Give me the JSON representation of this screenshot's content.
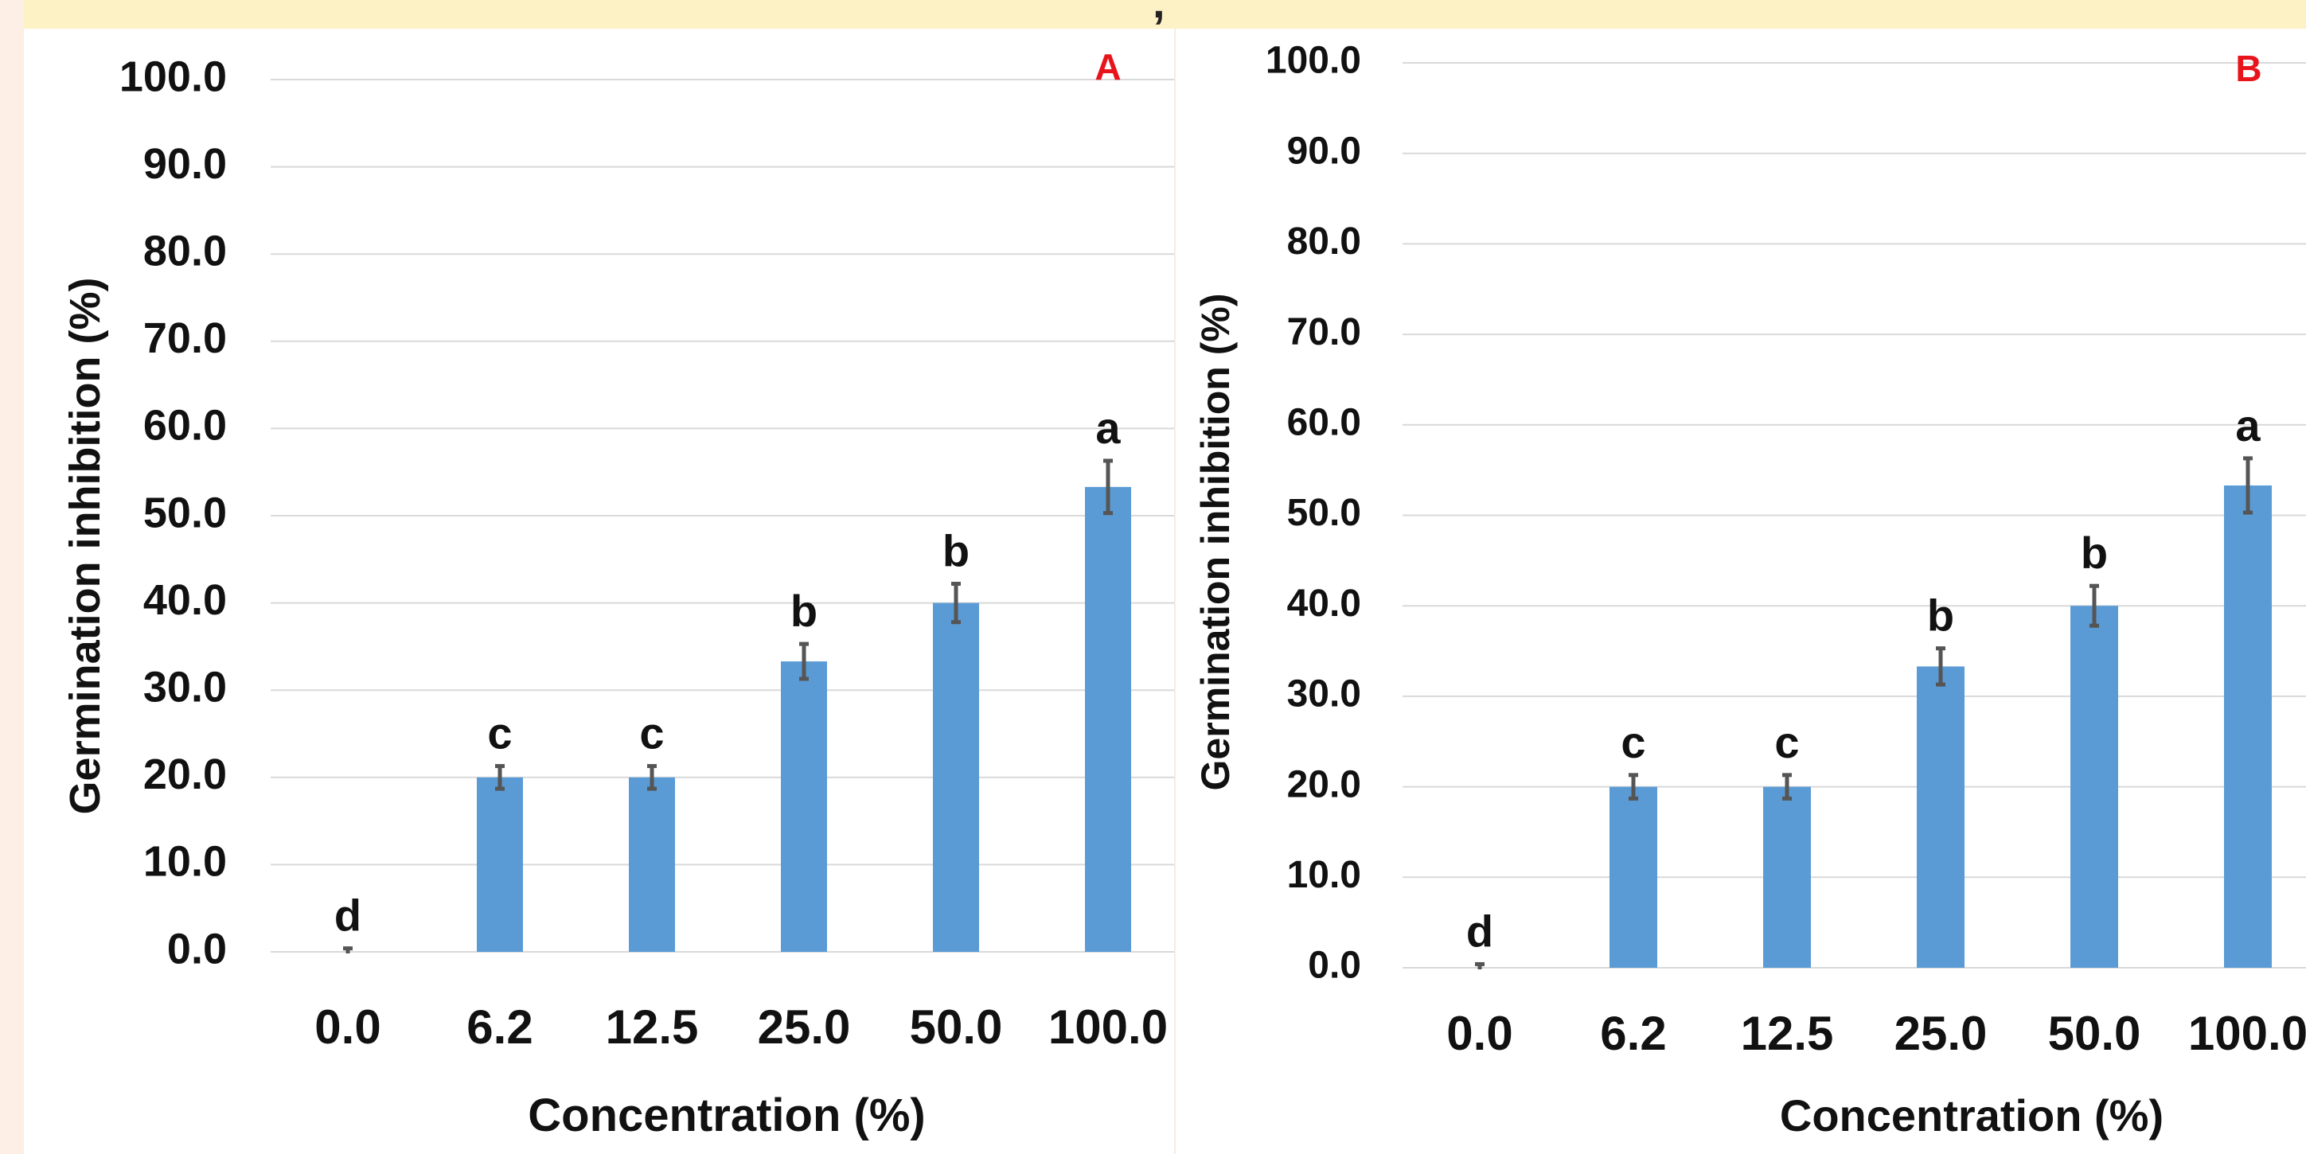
{
  "banner": {
    "text": ", "
  },
  "colors": {
    "bar": "#5b9bd5",
    "error_bar": "#555555",
    "gridline": "#d9d9d9",
    "panel_tag": "#e8141b",
    "banner_background": "#fdf1c6",
    "page_background": "#fdeee6"
  },
  "chart_data": [
    {
      "type": "bar",
      "panel_label": "A",
      "categories": [
        "0.0",
        "6.2",
        "12.5",
        "25.0",
        "50.0",
        "100.0"
      ],
      "values": [
        0.0,
        20.0,
        20.0,
        33.3,
        40.0,
        53.3
      ],
      "error": [
        0.0,
        1.3,
        1.3,
        2.0,
        2.2,
        3.0
      ],
      "significance_letters": [
        "d",
        "c",
        "c",
        "b",
        "b",
        "a"
      ],
      "xlabel": "Concentration (%)",
      "ylabel": "Germination inhibition (%)",
      "ylim": [
        0,
        100
      ],
      "yticks": [
        "0.0",
        "10.0",
        "20.0",
        "30.0",
        "40.0",
        "50.0",
        "60.0",
        "70.0",
        "80.0",
        "90.0",
        "100.0"
      ],
      "grid": true
    },
    {
      "type": "bar",
      "panel_label": "B",
      "categories": [
        "0.0",
        "6.2",
        "12.5",
        "25.0",
        "50.0",
        "100.0"
      ],
      "values": [
        0.0,
        20.0,
        20.0,
        33.3,
        40.0,
        53.3
      ],
      "error": [
        0.0,
        1.3,
        1.3,
        2.0,
        2.2,
        3.0
      ],
      "significance_letters": [
        "d",
        "c",
        "c",
        "b",
        "b",
        "a"
      ],
      "xlabel": "Concentration (%)",
      "ylabel": "Germination inhibition (%)",
      "ylim": [
        0,
        100
      ],
      "yticks": [
        "0.0",
        "10.0",
        "20.0",
        "30.0",
        "40.0",
        "50.0",
        "60.0",
        "70.0",
        "80.0",
        "90.0",
        "100.0"
      ],
      "grid": true
    }
  ]
}
